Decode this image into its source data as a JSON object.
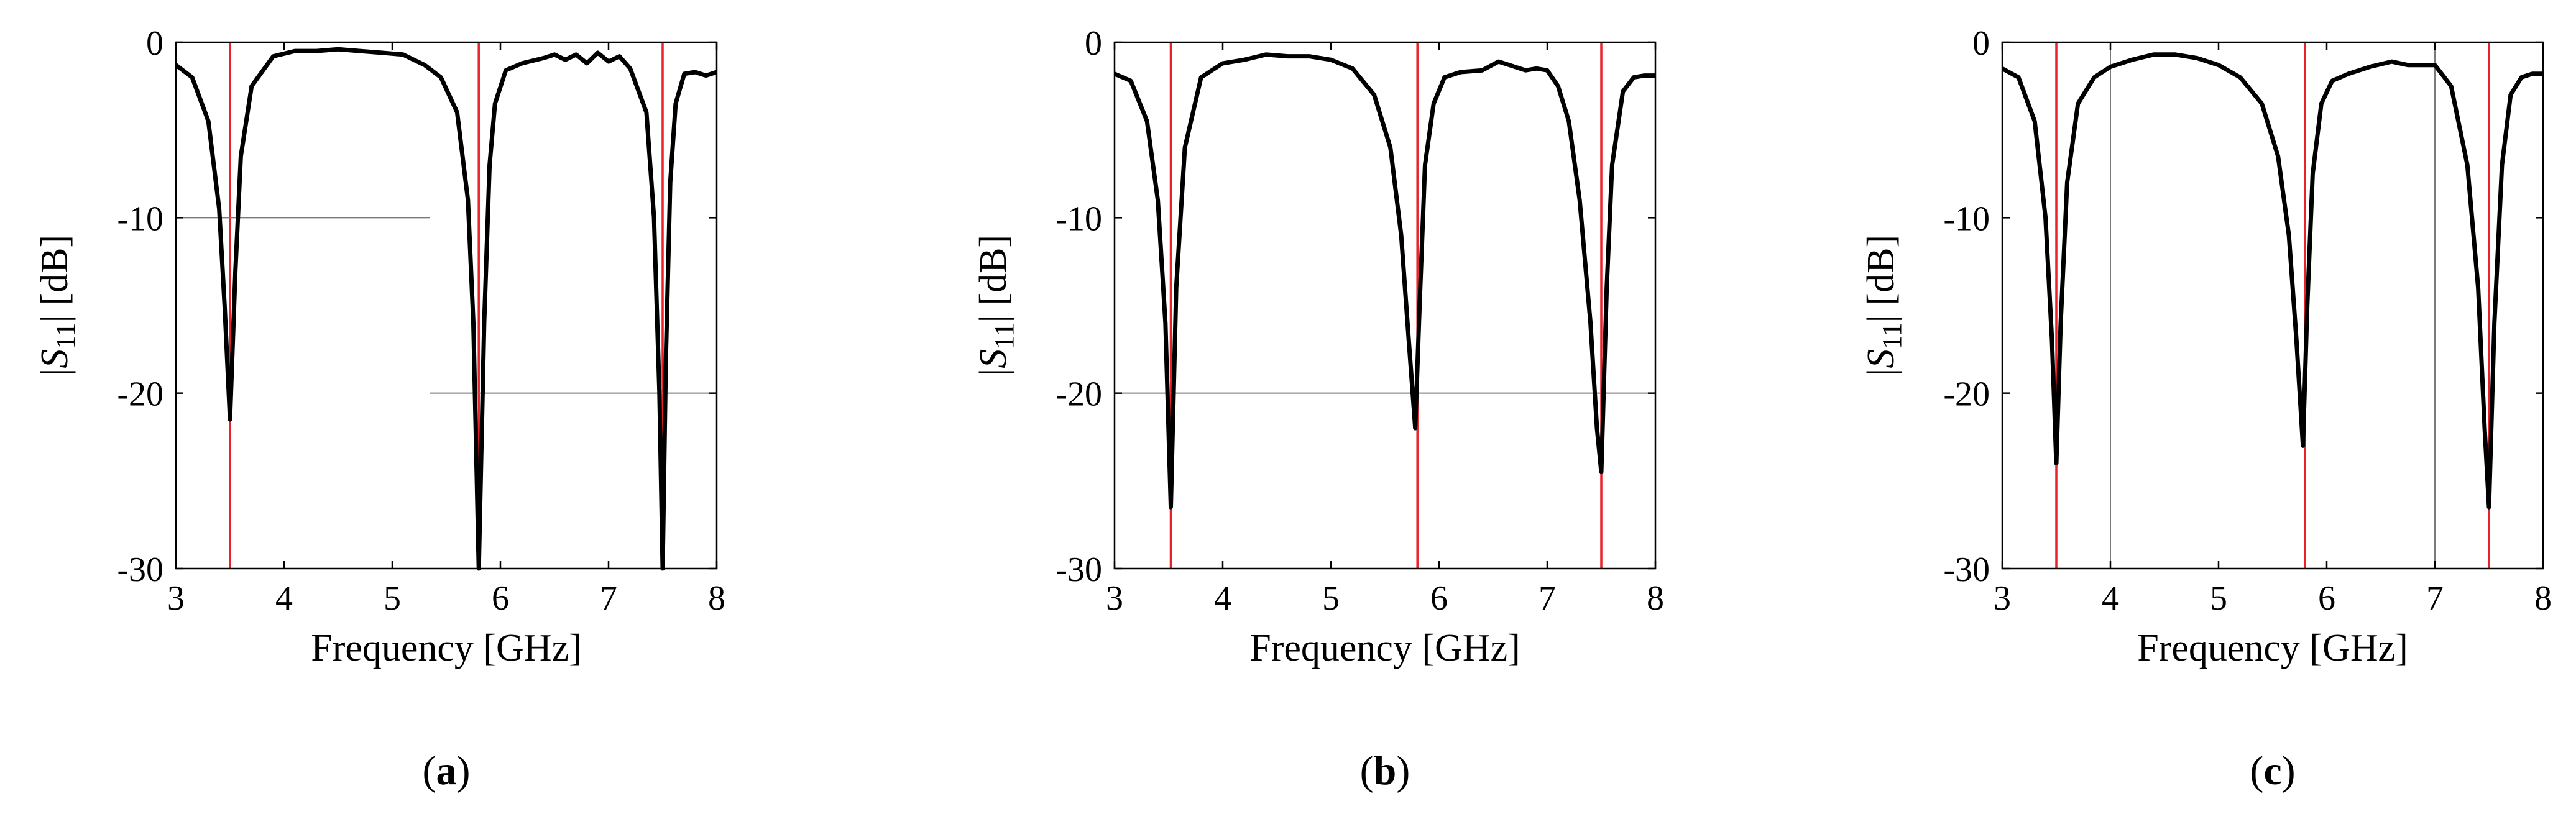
{
  "chart_data": [
    {
      "panel": "a",
      "type": "line",
      "caption": {
        "open": "(",
        "letter": "a",
        "close": ")"
      },
      "xlabel": "Frequency [GHz]",
      "ylabel": {
        "pre": "|",
        "var": "S",
        "sub": "11",
        "post": "| [dB]"
      },
      "xlim": [
        3,
        8
      ],
      "ylim": [
        -30,
        0
      ],
      "xticks": [
        3,
        4,
        5,
        6,
        7,
        8
      ],
      "yticks": [
        0,
        -10,
        -20,
        -30
      ],
      "series": [
        {
          "name": "|S11|",
          "color": "#000000",
          "x": [
            3.0,
            3.15,
            3.3,
            3.4,
            3.45,
            3.5,
            3.55,
            3.6,
            3.7,
            3.9,
            4.1,
            4.3,
            4.5,
            4.7,
            4.9,
            5.1,
            5.3,
            5.45,
            5.6,
            5.7,
            5.75,
            5.8,
            5.85,
            5.9,
            5.95,
            6.05,
            6.2,
            6.4,
            6.5,
            6.6,
            6.7,
            6.8,
            6.9,
            7.0,
            7.1,
            7.2,
            7.35,
            7.42,
            7.47,
            7.5,
            7.53,
            7.57,
            7.62,
            7.7,
            7.8,
            7.9,
            8.0
          ],
          "y": [
            -1.3,
            -2.0,
            -4.5,
            -9.5,
            -15,
            -21.5,
            -13,
            -6.5,
            -2.5,
            -0.8,
            -0.5,
            -0.5,
            -0.4,
            -0.5,
            -0.6,
            -0.7,
            -1.3,
            -2.0,
            -4.0,
            -9.0,
            -16,
            -30,
            -16,
            -7.0,
            -3.5,
            -1.6,
            -1.2,
            -0.9,
            -0.7,
            -1.0,
            -0.7,
            -1.2,
            -0.6,
            -1.1,
            -0.8,
            -1.5,
            -4.0,
            -10,
            -20,
            -30,
            -18,
            -8.0,
            -3.5,
            -1.8,
            -1.7,
            -1.9,
            -1.7
          ]
        }
      ],
      "markers": [
        {
          "kind": "red-vertical",
          "x": 3.5
        },
        {
          "kind": "red-vertical",
          "x": 5.8
        },
        {
          "kind": "red-vertical",
          "x": 7.5
        },
        {
          "kind": "gray-horizontal",
          "y": -10,
          "x_from": 3.0,
          "x_to": 5.35
        },
        {
          "kind": "gray-horizontal",
          "y": -20,
          "x_from": 5.35,
          "x_to": 8.0
        }
      ]
    },
    {
      "panel": "b",
      "type": "line",
      "caption": {
        "open": "(",
        "letter": "b",
        "close": ")"
      },
      "xlabel": "Frequency [GHz]",
      "ylabel": {
        "pre": "|",
        "var": "S",
        "sub": "11",
        "post": "| [dB]"
      },
      "xlim": [
        3,
        8
      ],
      "ylim": [
        -30,
        0
      ],
      "xticks": [
        3,
        4,
        5,
        6,
        7,
        8
      ],
      "yticks": [
        0,
        -10,
        -20,
        -30
      ],
      "series": [
        {
          "name": "|S11|",
          "color": "#000000",
          "x": [
            3.0,
            3.15,
            3.3,
            3.4,
            3.47,
            3.52,
            3.57,
            3.65,
            3.8,
            4.0,
            4.2,
            4.4,
            4.6,
            4.8,
            5.0,
            5.2,
            5.4,
            5.55,
            5.65,
            5.72,
            5.78,
            5.82,
            5.87,
            5.95,
            6.05,
            6.2,
            6.4,
            6.55,
            6.65,
            6.8,
            6.9,
            7.0,
            7.1,
            7.2,
            7.3,
            7.4,
            7.46,
            7.5,
            7.55,
            7.6,
            7.7,
            7.8,
            7.9,
            8.0
          ],
          "y": [
            -1.8,
            -2.2,
            -4.5,
            -9.0,
            -16,
            -26.5,
            -14,
            -6.0,
            -2.0,
            -1.2,
            -1.0,
            -0.7,
            -0.8,
            -0.8,
            -1.0,
            -1.5,
            -3.0,
            -6.0,
            -11,
            -17,
            -22,
            -15,
            -7.0,
            -3.5,
            -2.0,
            -1.7,
            -1.6,
            -1.1,
            -1.3,
            -1.6,
            -1.5,
            -1.6,
            -2.5,
            -4.5,
            -9.0,
            -16,
            -22,
            -24.5,
            -14,
            -7.0,
            -2.8,
            -2.0,
            -1.9,
            -1.9
          ]
        }
      ],
      "markers": [
        {
          "kind": "red-vertical",
          "x": 3.52
        },
        {
          "kind": "red-vertical",
          "x": 5.8
        },
        {
          "kind": "red-vertical",
          "x": 7.5
        },
        {
          "kind": "gray-horizontal",
          "y": -20,
          "x_from": 3.0,
          "x_to": 8.0
        }
      ]
    },
    {
      "panel": "c",
      "type": "line",
      "caption": {
        "open": "(",
        "letter": "c",
        "close": ")"
      },
      "xlabel": "Frequency [GHz]",
      "ylabel": {
        "pre": "|",
        "var": "S",
        "sub": "11",
        "post": "| [dB]"
      },
      "xlim": [
        3,
        8
      ],
      "ylim": [
        -30,
        0
      ],
      "xticks": [
        3,
        4,
        5,
        6,
        7,
        8
      ],
      "yticks": [
        0,
        -10,
        -20,
        -30
      ],
      "series": [
        {
          "name": "|S11|",
          "color": "#000000",
          "x": [
            3.0,
            3.15,
            3.3,
            3.4,
            3.46,
            3.5,
            3.54,
            3.6,
            3.7,
            3.85,
            4.0,
            4.2,
            4.4,
            4.6,
            4.8,
            5.0,
            5.2,
            5.4,
            5.55,
            5.65,
            5.72,
            5.78,
            5.82,
            5.87,
            5.95,
            6.05,
            6.2,
            6.4,
            6.6,
            6.75,
            6.85,
            7.0,
            7.15,
            7.3,
            7.4,
            7.46,
            7.5,
            7.55,
            7.62,
            7.7,
            7.8,
            7.9,
            8.0
          ],
          "y": [
            -1.5,
            -2.0,
            -4.5,
            -10,
            -17,
            -24,
            -16,
            -8.0,
            -3.5,
            -2.0,
            -1.4,
            -1.0,
            -0.7,
            -0.7,
            -0.9,
            -1.3,
            -2.0,
            -3.5,
            -6.5,
            -11,
            -17,
            -23,
            -15,
            -7.5,
            -3.5,
            -2.2,
            -1.8,
            -1.4,
            -1.1,
            -1.3,
            -1.3,
            -1.3,
            -2.5,
            -7.0,
            -14,
            -22,
            -26.5,
            -16,
            -7.0,
            -3.0,
            -2.0,
            -1.8,
            -1.8
          ]
        }
      ],
      "markers": [
        {
          "kind": "red-vertical",
          "x": 3.5
        },
        {
          "kind": "red-vertical",
          "x": 5.8
        },
        {
          "kind": "red-vertical",
          "x": 7.5
        },
        {
          "kind": "gray-vertical",
          "x": 4.0
        },
        {
          "kind": "gray-vertical",
          "x": 7.0
        }
      ]
    }
  ]
}
